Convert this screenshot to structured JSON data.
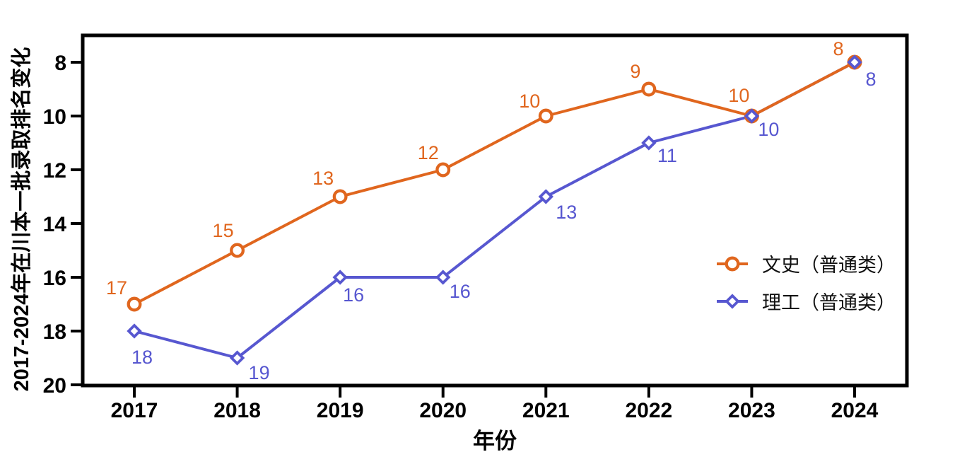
{
  "chart_data": {
    "type": "line",
    "title": "",
    "xlabel": "年份",
    "ylabel": "2017-2024年在川本一批录取排名变化",
    "categories": [
      "2017",
      "2018",
      "2019",
      "2020",
      "2021",
      "2022",
      "2023",
      "2024"
    ],
    "y_ticks": [
      8,
      10,
      12,
      14,
      16,
      18,
      20
    ],
    "ylim": [
      20,
      7
    ],
    "y_axis_inverted": true,
    "grid": false,
    "legend_position": "inside-right-middle",
    "axis_color": "#000000",
    "background_color": "#ffffff",
    "series": [
      {
        "name": "文史（普通类）",
        "marker": "circle",
        "color": "#E0661E",
        "values": [
          17,
          15,
          13,
          12,
          10,
          9,
          10,
          8
        ],
        "label_offsets": [
          [
            -25,
            -23
          ],
          [
            -20,
            -28
          ],
          [
            -24,
            -26
          ],
          [
            -21,
            -24
          ],
          [
            -23,
            -21
          ],
          [
            -19,
            -25
          ],
          [
            -18,
            -29
          ],
          [
            -23,
            -19
          ]
        ]
      },
      {
        "name": "理工（普通类）",
        "marker": "diamond",
        "color": "#5757D0",
        "values": [
          18,
          19,
          16,
          16,
          13,
          11,
          10,
          8
        ],
        "label_offsets": [
          [
            11,
            37
          ],
          [
            31,
            21
          ],
          [
            19,
            25
          ],
          [
            24,
            20
          ],
          [
            29,
            22
          ],
          [
            26,
            18
          ],
          [
            24,
            19
          ],
          [
            23,
            24
          ]
        ]
      }
    ]
  }
}
